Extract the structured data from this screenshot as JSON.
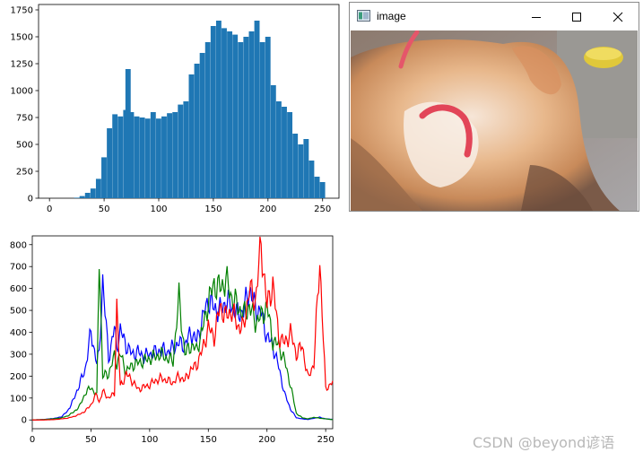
{
  "window": {
    "title": "image",
    "controls": [
      "minimize",
      "maximize",
      "close"
    ]
  },
  "watermark": "CSDN @beyond谚语",
  "colors": {
    "hist_bar": "#1f77b4",
    "blue_line": "#0000ff",
    "green_line": "#008000",
    "red_line": "#ff0000"
  },
  "chart_data": [
    {
      "type": "bar",
      "title": "",
      "xlim": [
        -10,
        265
      ],
      "ylim": [
        0,
        1800
      ],
      "xticks": [
        "0",
        "50",
        "100",
        "150",
        "200",
        "250"
      ],
      "yticks": [
        "0",
        "250",
        "500",
        "750",
        "1000",
        "1250",
        "1500",
        "1750"
      ],
      "x": [
        20,
        25,
        30,
        35,
        40,
        45,
        50,
        55,
        60,
        65,
        70,
        72,
        75,
        80,
        85,
        90,
        95,
        100,
        105,
        110,
        115,
        120,
        125,
        130,
        135,
        140,
        145,
        150,
        155,
        160,
        165,
        170,
        175,
        180,
        185,
        190,
        195,
        200,
        205,
        210,
        215,
        220,
        225,
        230,
        235,
        240,
        245,
        250,
        255
      ],
      "values": [
        0,
        5,
        20,
        50,
        90,
        180,
        380,
        650,
        780,
        760,
        820,
        1200,
        800,
        760,
        750,
        740,
        800,
        740,
        760,
        790,
        800,
        870,
        900,
        1150,
        1250,
        1350,
        1450,
        1600,
        1650,
        1580,
        1550,
        1520,
        1450,
        1500,
        1550,
        1650,
        1450,
        1500,
        1050,
        900,
        850,
        800,
        600,
        500,
        550,
        350,
        200,
        150,
        0
      ]
    },
    {
      "type": "line",
      "title": "",
      "xlim": [
        0,
        256
      ],
      "ylim": [
        -40,
        840
      ],
      "xticks": [
        "0",
        "50",
        "100",
        "150",
        "200",
        "250"
      ],
      "yticks": [
        "0",
        "100",
        "200",
        "300",
        "400",
        "500",
        "600",
        "700",
        "800"
      ],
      "x": [
        0,
        10,
        20,
        25,
        30,
        35,
        40,
        45,
        50,
        55,
        57,
        60,
        65,
        70,
        72,
        75,
        80,
        85,
        90,
        95,
        100,
        105,
        110,
        115,
        120,
        125,
        130,
        135,
        140,
        145,
        150,
        155,
        160,
        165,
        170,
        175,
        180,
        185,
        190,
        195,
        200,
        205,
        210,
        215,
        220,
        225,
        230,
        235,
        240,
        245,
        250,
        255
      ],
      "series": [
        {
          "name": "",
          "values": [
            0,
            2,
            8,
            15,
            40,
            90,
            160,
            230,
            400,
            260,
            300,
            640,
            280,
            420,
            330,
            410,
            340,
            300,
            310,
            290,
            300,
            310,
            320,
            310,
            330,
            350,
            340,
            400,
            360,
            460,
            550,
            510,
            500,
            540,
            520,
            480,
            500,
            600,
            510,
            490,
            380,
            340,
            240,
            120,
            50,
            10,
            5,
            2,
            8,
            12,
            5,
            3
          ]
        },
        {
          "name": "",
          "values": [
            0,
            2,
            6,
            10,
            18,
            35,
            60,
            120,
            150,
            110,
            765,
            200,
            210,
            290,
            260,
            300,
            220,
            250,
            260,
            270,
            280,
            290,
            300,
            280,
            270,
            560,
            300,
            340,
            320,
            410,
            540,
            620,
            600,
            640,
            560,
            520,
            480,
            520,
            450,
            470,
            520,
            360,
            340,
            270,
            160,
            30,
            10,
            5,
            12,
            8,
            5,
            2
          ]
        },
        {
          "name": "",
          "values": [
            0,
            0,
            2,
            5,
            8,
            15,
            25,
            40,
            70,
            120,
            80,
            130,
            100,
            120,
            530,
            150,
            210,
            180,
            140,
            150,
            160,
            180,
            190,
            180,
            170,
            200,
            180,
            230,
            250,
            320,
            420,
            380,
            520,
            470,
            500,
            430,
            420,
            600,
            540,
            800,
            520,
            620,
            380,
            350,
            400,
            300,
            340,
            190,
            260,
            730,
            140,
            170
          ]
        }
      ]
    }
  ]
}
